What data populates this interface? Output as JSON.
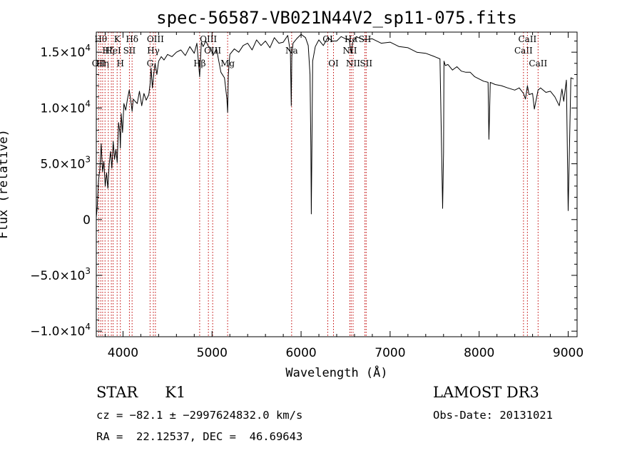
{
  "chart_data": {
    "type": "line",
    "title": "spec-56587-VB021N44V2_sp11-075.fits",
    "xlabel": "Wavelength (Å)",
    "ylabel": "Flux (relative)",
    "xlim": [
      3700,
      9100
    ],
    "ylim": [
      -10500,
      16800
    ],
    "xticks": [
      {
        "value": 4000,
        "label": "4000"
      },
      {
        "value": 5000,
        "label": "5000"
      },
      {
        "value": 6000,
        "label": "6000"
      },
      {
        "value": 7000,
        "label": "7000"
      },
      {
        "value": 8000,
        "label": "8000"
      },
      {
        "value": 9000,
        "label": "9000"
      }
    ],
    "yticks": [
      {
        "value": 15000,
        "mantissa": "1.5×10",
        "exp": "4"
      },
      {
        "value": 10000,
        "mantissa": "1.0×10",
        "exp": "4"
      },
      {
        "value": 5000,
        "mantissa": "5.0×10",
        "exp": "3"
      },
      {
        "value": 0,
        "mantissa": "0",
        "exp": ""
      },
      {
        "value": -5000,
        "mantissa": "−5.0×10",
        "exp": "3"
      },
      {
        "value": -10000,
        "mantissa": "−1.0×10",
        "exp": "4"
      }
    ],
    "series": [
      {
        "color": "#000000",
        "x": [
          3700,
          3710,
          3725,
          3740,
          3755,
          3770,
          3785,
          3800,
          3815,
          3830,
          3845,
          3860,
          3875,
          3890,
          3905,
          3920,
          3935,
          3950,
          3965,
          3970,
          3980,
          3995,
          4010,
          4030,
          4050,
          4070,
          4090,
          4102,
          4115,
          4135,
          4160,
          4185,
          4210,
          4235,
          4260,
          4290,
          4305,
          4315,
          4330,
          4345,
          4360,
          4380,
          4400,
          4430,
          4460,
          4500,
          4550,
          4600,
          4650,
          4700,
          4750,
          4800,
          4830,
          4861,
          4880,
          4900,
          4930,
          4960,
          4985,
          5010,
          5050,
          5100,
          5140,
          5167,
          5175,
          5183,
          5200,
          5250,
          5300,
          5350,
          5400,
          5450,
          5500,
          5550,
          5600,
          5650,
          5700,
          5750,
          5800,
          5850,
          5880,
          5890,
          5896,
          5910,
          5950,
          6000,
          6050,
          6080,
          6100,
          6110,
          6115,
          6122,
          6130,
          6160,
          6200,
          6250,
          6300,
          6350,
          6400,
          6450,
          6500,
          6540,
          6563,
          6580,
          6620,
          6700,
          6800,
          6900,
          7000,
          7100,
          7200,
          7300,
          7400,
          7500,
          7560,
          7590,
          7600,
          7605,
          7620,
          7650,
          7700,
          7750,
          7800,
          7850,
          7900,
          7950,
          8000,
          8050,
          8100,
          8110,
          8115,
          8125,
          8180,
          8250,
          8320,
          8400,
          8450,
          8498,
          8520,
          8542,
          8560,
          8600,
          8620,
          8662,
          8690,
          8750,
          8800,
          8850,
          8900,
          8930,
          8950,
          8980,
          9000,
          9030,
          9060
        ],
        "y": [
          200,
          1000,
          3500,
          4500,
          6800,
          4300,
          5200,
          3000,
          4200,
          2800,
          5000,
          6100,
          4600,
          7000,
          5400,
          6300,
          5100,
          8700,
          7800,
          6400,
          9500,
          7800,
          10400,
          9800,
          10800,
          11600,
          10500,
          9700,
          10800,
          10600,
          10400,
          11500,
          10200,
          11300,
          10700,
          11200,
          12200,
          13600,
          11800,
          13000,
          14000,
          13000,
          14200,
          14600,
          14300,
          14800,
          14600,
          15000,
          15200,
          14700,
          15500,
          14900,
          15800,
          12800,
          15900,
          15500,
          16000,
          15500,
          15400,
          14700,
          15300,
          13200,
          12700,
          10800,
          9600,
          13000,
          14800,
          15300,
          15000,
          15600,
          15800,
          15200,
          16100,
          15600,
          16000,
          15400,
          16300,
          15800,
          15900,
          16500,
          15000,
          10200,
          14600,
          15800,
          16200,
          16600,
          16300,
          15600,
          13000,
          6500,
          500,
          6800,
          14200,
          15500,
          16100,
          15600,
          16300,
          16000,
          16000,
          16400,
          16200,
          16100,
          14900,
          15900,
          16400,
          16100,
          16200,
          15800,
          15900,
          15500,
          15400,
          15000,
          14900,
          14600,
          14400,
          1000,
          6000,
          14200,
          13800,
          13900,
          13400,
          13700,
          13300,
          13200,
          13200,
          12800,
          12600,
          12400,
          12300,
          7200,
          9000,
          12300,
          12100,
          12000,
          11800,
          11600,
          11800,
          11300,
          10800,
          12000,
          11200,
          11300,
          9900,
          11600,
          11800,
          11400,
          11500,
          11000,
          10200,
          11700,
          10600,
          12500,
          800,
          12700,
          12600
        ]
      }
    ],
    "lines": [
      {
        "x": 3727,
        "label": "OII",
        "row": 2
      },
      {
        "x": 3750,
        "label": "Hθ",
        "row": 0
      },
      {
        "x": 3771,
        "label": "Hη",
        "row": 2
      },
      {
        "x": 3798,
        "label": "",
        "row": -1
      },
      {
        "x": 3835,
        "label": "Hζ",
        "row": 1
      },
      {
        "x": 3869,
        "label": "",
        "row": -1
      },
      {
        "x": 3889,
        "label": "HeI",
        "row": 1
      },
      {
        "x": 3934,
        "label": "K",
        "row": 0
      },
      {
        "x": 3970,
        "label": "H",
        "row": 2
      },
      {
        "x": 4072,
        "label": "SII",
        "row": 1
      },
      {
        "x": 4102,
        "label": "Hδ",
        "row": 0
      },
      {
        "x": 4304,
        "label": "G",
        "row": 2
      },
      {
        "x": 4341,
        "label": "Hγ",
        "row": 1
      },
      {
        "x": 4364,
        "label": "OIII",
        "row": 0
      },
      {
        "x": 4861,
        "label": "Hβ",
        "row": 2
      },
      {
        "x": 4959,
        "label": "OIII",
        "row": 0
      },
      {
        "x": 5007,
        "label": "OIII",
        "row": 1
      },
      {
        "x": 5175,
        "label": "Mg",
        "row": 2
      },
      {
        "x": 5894,
        "label": "Na",
        "row": 1
      },
      {
        "x": 6300,
        "label": "OI",
        "row": 0
      },
      {
        "x": 6364,
        "label": "OI",
        "row": 2
      },
      {
        "x": 6548,
        "label": "NII",
        "row": 1
      },
      {
        "x": 6563,
        "label": "Hα",
        "row": 0
      },
      {
        "x": 6584,
        "label": "NII",
        "row": 2
      },
      {
        "x": 6717,
        "label": "SII",
        "row": 0
      },
      {
        "x": 6731,
        "label": "SII",
        "row": 2
      },
      {
        "x": 8498,
        "label": "CaII",
        "row": 1
      },
      {
        "x": 8542,
        "label": "CaII",
        "row": 0
      },
      {
        "x": 8662,
        "label": "CaII",
        "row": 2
      }
    ],
    "line_color": "#c00000",
    "grid": false,
    "legend": "none"
  },
  "footer": {
    "class_label": "STAR",
    "subclass": "K1",
    "survey": "LAMOST DR3",
    "cz_line": "cz = −82.1 ± −2997624832.0 km/s",
    "obs_date": "Obs-Date: 20131021",
    "coords": "RA =  22.12537, DEC =  46.69643"
  }
}
